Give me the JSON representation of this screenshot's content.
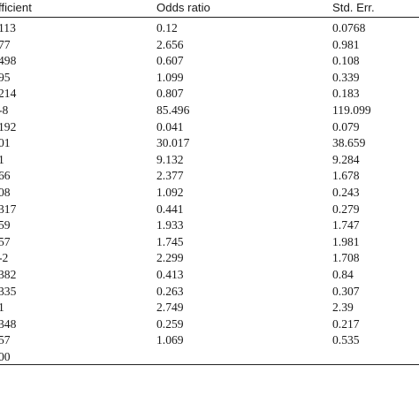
{
  "table": {
    "headers": [
      "fficient",
      "Odds ratio",
      "Std. Err."
    ],
    "rows": [
      [
        "113",
        "0.12",
        "0.0768"
      ],
      [
        "77",
        "2.656",
        "0.981"
      ],
      [
        "498",
        "0.607",
        "0.108"
      ],
      [
        "95",
        "1.099",
        "0.339"
      ],
      [
        "214",
        "0.807",
        "0.183"
      ],
      [
        "-8",
        "85.496",
        "119.099"
      ],
      [
        "192",
        "0.041",
        "0.079"
      ],
      [
        "01",
        "30.017",
        "38.659"
      ],
      [
        "1",
        "9.132",
        "9.284"
      ],
      [
        "66",
        "2.377",
        "1.678"
      ],
      [
        "08",
        "1.092",
        "0.243"
      ],
      [
        "317",
        "0.441",
        "0.279"
      ],
      [
        "59",
        "1.933",
        "1.747"
      ],
      [
        "57",
        "1.745",
        "1.981"
      ],
      [
        "-2",
        "2.299",
        "1.708"
      ],
      [
        "382",
        "0.413",
        "0.84"
      ],
      [
        "335",
        "0.263",
        "0.307"
      ],
      [
        "1",
        "2.749",
        "2.39"
      ],
      [
        "348",
        "0.259",
        "0.217"
      ],
      [
        "57",
        "1.069",
        "0.535"
      ],
      [
        "00",
        "",
        ""
      ]
    ]
  }
}
